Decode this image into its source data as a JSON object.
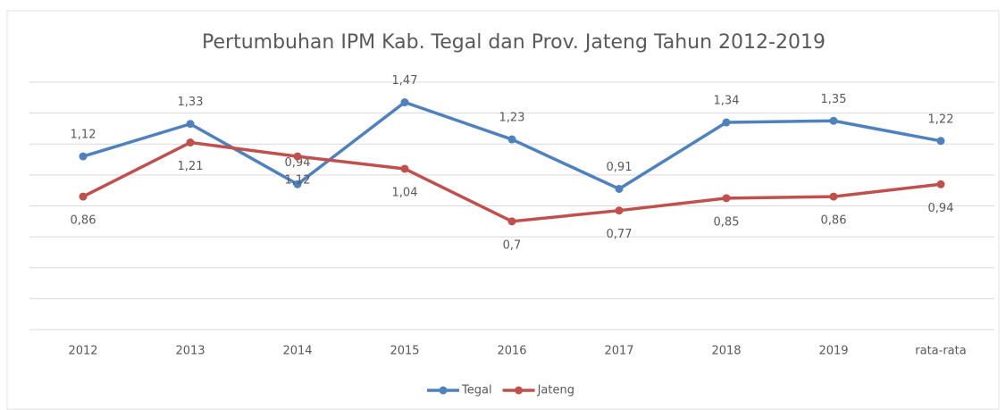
{
  "chart_data": {
    "type": "line",
    "title": "Pertumbuhan  IPM Kab. Tegal dan Prov. Jateng Tahun 2012-2019",
    "categories": [
      "2012",
      "2013",
      "2014",
      "2015",
      "2016",
      "2017",
      "2018",
      "2019",
      "rata-rata"
    ],
    "series": [
      {
        "name": "Tegal",
        "color": "#4f81bd",
        "values": [
          1.12,
          1.33,
          0.94,
          1.47,
          1.23,
          0.91,
          1.34,
          1.35,
          1.22
        ],
        "value_labels": [
          "1,12",
          "1,33",
          "0,94",
          "1,47",
          "1,23",
          "0,91",
          "1,34",
          "1,35",
          "1,22"
        ]
      },
      {
        "name": "Jateng",
        "color": "#c0504d",
        "values": [
          0.86,
          1.21,
          1.12,
          1.04,
          0.7,
          0.77,
          0.85,
          0.86,
          0.94
        ],
        "value_labels": [
          "0,86",
          "1,21",
          "1,12",
          "1,04",
          "0,7",
          "0,77",
          "0,85",
          "0,86",
          "0,94"
        ]
      }
    ],
    "ylim": [
      0,
      1.6
    ],
    "yticks": [
      0,
      0.2,
      0.4,
      0.6,
      0.8,
      1,
      1.2,
      1.4,
      1.6
    ],
    "grid": true,
    "legend": "bottom"
  }
}
